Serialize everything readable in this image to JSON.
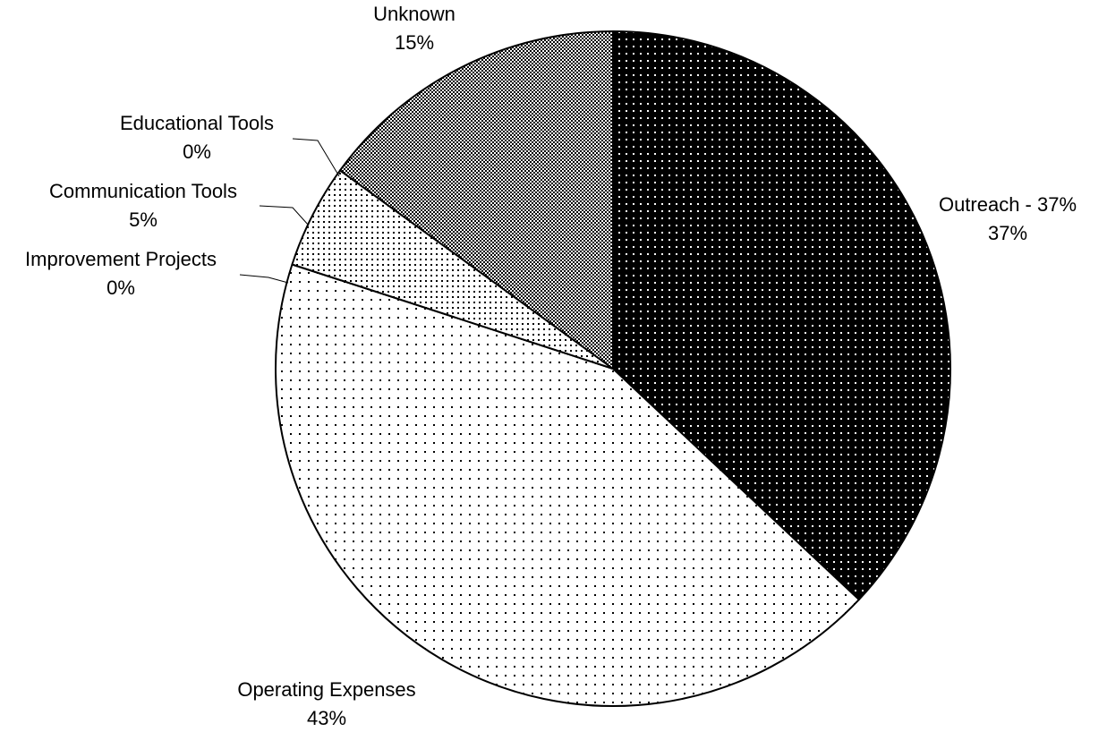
{
  "chart_data": {
    "type": "pie",
    "categories": [
      "Outreach - 37%",
      "Operating Expenses",
      "Improvement Projects",
      "Communication Tools",
      "Educational Tools",
      "Unknown"
    ],
    "values": [
      37,
      43,
      0,
      5,
      0,
      15
    ],
    "value_labels": [
      "37%",
      "43%",
      "0%",
      "5%",
      "0%",
      "15%"
    ]
  }
}
